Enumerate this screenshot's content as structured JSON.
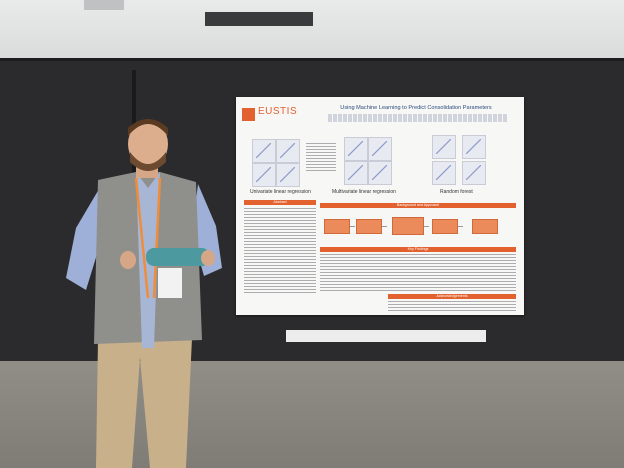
{
  "poster": {
    "logo_text": "EUSTIS",
    "title": "Using Machine Learning to Predict Consolidation Parameters",
    "plot_captions": [
      "Univariate linear regression",
      "Multivariate linear regression",
      "Random forest"
    ],
    "section_headers": {
      "left": "Abstract",
      "background": "Background and Approach",
      "findings": "Key Findings",
      "acknowledgements": "Acknowledgements"
    },
    "accent_color": "#e2612e"
  }
}
